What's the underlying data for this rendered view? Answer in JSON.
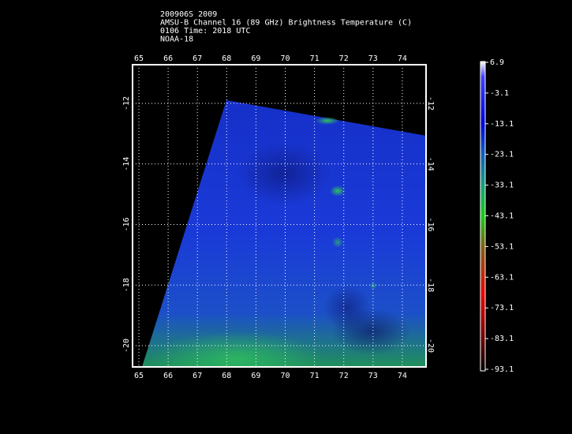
{
  "header": {
    "lines": [
      "200906S 2009",
      "AMSU-B Channel 16 (89 GHz) Brightness Temperature (C)",
      "0106 Time: 2018 UTC",
      "NOAA-18"
    ]
  },
  "map": {
    "lon_ticks": [
      65,
      66,
      67,
      68,
      69,
      70,
      71,
      72,
      73,
      74
    ],
    "lat_ticks": [
      -12,
      -14,
      -16,
      -18,
      -20
    ]
  },
  "colorbar": {
    "ticks": [
      6.9,
      -3.1,
      -13.1,
      -23.1,
      -33.1,
      -43.1,
      -53.1,
      -63.1,
      -73.1,
      -83.1,
      -93.1
    ]
  }
}
